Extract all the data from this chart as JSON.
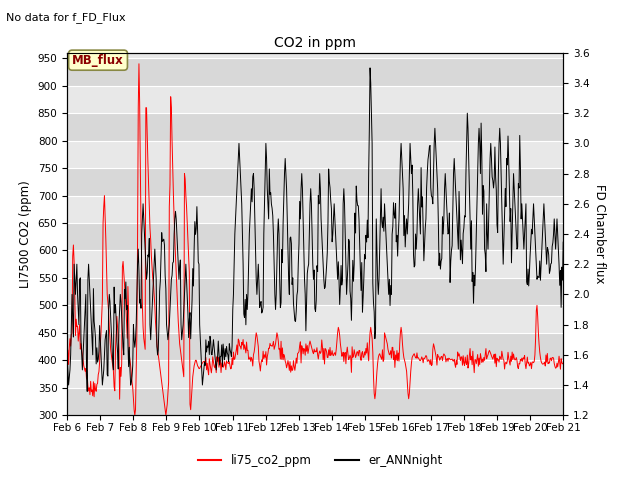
{
  "title": "CO2 in ppm",
  "top_left_text": "No data for f_FD_Flux",
  "ylabel_left": "LI7500 CO2 (ppm)",
  "ylabel_right": "FD Chamber flux",
  "ylim_left": [
    300,
    960
  ],
  "ylim_right": [
    1.2,
    3.6
  ],
  "yticks_left": [
    300,
    350,
    400,
    450,
    500,
    550,
    600,
    650,
    700,
    750,
    800,
    850,
    900,
    950
  ],
  "yticks_right": [
    1.2,
    1.4,
    1.6,
    1.8,
    2.0,
    2.2,
    2.4,
    2.6,
    2.8,
    3.0,
    3.2,
    3.4,
    3.6
  ],
  "xtick_labels": [
    "Feb 6",
    "Feb 7",
    "Feb 8",
    "Feb 9",
    "Feb 10",
    "Feb 11",
    "Feb 12",
    "Feb 13",
    "Feb 14",
    "Feb 15",
    "Feb 16",
    "Feb 17",
    "Feb 18",
    "Feb 19",
    "Feb 20",
    "Feb 21"
  ],
  "line1_color": "#ff0000",
  "line2_color": "#000000",
  "line1_label": "li75_co2_ppm",
  "line2_label": "er_ANNnight",
  "mb_flux_label": "MB_flux",
  "mb_flux_bg": "#ffffcc",
  "mb_flux_border": "#cc0000",
  "plot_bg": "#e8e8e8",
  "grid_color": "#ffffff",
  "alt_band_color": "#d8d8d8"
}
